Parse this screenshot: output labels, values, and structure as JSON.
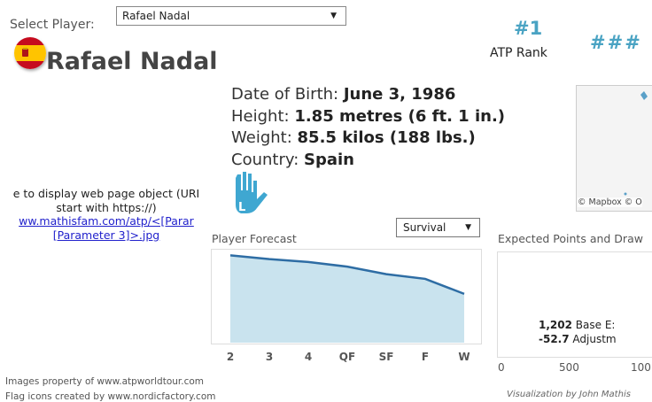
{
  "player_select": {
    "label": "Select Player:",
    "value": "Rafael Nadal"
  },
  "player": {
    "name": "Rafael Nadal",
    "flag_icon": "spain-flag-icon"
  },
  "rank": {
    "value": "#1",
    "label": "ATP Rank",
    "other": "###"
  },
  "bio": {
    "dob_label": "Date of Birth:",
    "dob": "June 3, 1986",
    "height_label": "Height:",
    "height": "1.85 metres (6 ft. 1 in.)",
    "weight_label": "Weight:",
    "weight": "85.5 kilos (188 lbs.)",
    "country_label": "Country:",
    "country": "Spain",
    "hand_icon": "left-hand-icon",
    "hand_letter": "L"
  },
  "map": {
    "attribution": "© Mapbox © O"
  },
  "web_object": {
    "line1": "e to display web page object (URI",
    "line2": "start with https://)",
    "link1": "ww.mathisfam.com/atp/<[Parar",
    "link2": "[Parameter 3]>.jpg"
  },
  "forecast": {
    "title": "Player Forecast",
    "select_value": "Survival",
    "colors": {
      "line": "#2e6da4",
      "area": "#c9e3ee"
    }
  },
  "chart_data": {
    "type": "area",
    "categories": [
      "2",
      "3",
      "4",
      "QF",
      "SF",
      "F",
      "W"
    ],
    "values": [
      0.93,
      0.89,
      0.86,
      0.81,
      0.73,
      0.68,
      0.52
    ],
    "ylim": [
      0,
      1
    ],
    "grid": false
  },
  "expected_points": {
    "title": "Expected Points and Draw",
    "line1_value": "1,202",
    "line1_text": "Base E:",
    "line2_value": "-52.7",
    "line2_text": "Adjustm",
    "axis_ticks": [
      "0",
      "500",
      "100"
    ]
  },
  "credits": {
    "visualization": "Visualization by John Mathis",
    "images": "Images property of www.atpworldtour.com",
    "flags": "Flag icons created by www.nordicfactory.com"
  }
}
